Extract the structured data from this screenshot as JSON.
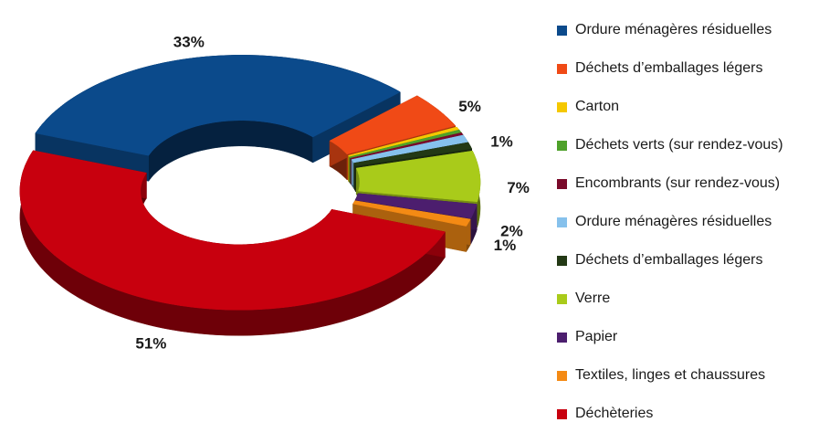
{
  "chart_data": {
    "type": "pie",
    "variant": "3d-exploded-donut",
    "legend_position": "right",
    "series": [
      {
        "name": "Ordure ménagères résiduelles",
        "value": 33,
        "label": "33%",
        "color": "#0b4a8b"
      },
      {
        "name": "Déchets d’emballages légers",
        "value": 5,
        "label": "5%",
        "color": "#f04a16"
      },
      {
        "name": "Carton",
        "value": 0.4,
        "label": "",
        "color": "#f5c800"
      },
      {
        "name": "Déchets verts (sur rendez-vous)",
        "value": 0.4,
        "label": "",
        "color": "#4ea12a"
      },
      {
        "name": "Encombrants (sur rendez-vous)",
        "value": 0.3,
        "label": "",
        "color": "#7a0a2a"
      },
      {
        "name": "Ordure ménagères résiduelles",
        "value": 1,
        "label": "1%",
        "color": "#86c1ec"
      },
      {
        "name": "Déchets d’emballages légers",
        "value": 0.9,
        "label": "",
        "color": "#233915"
      },
      {
        "name": "Verre",
        "value": 7,
        "label": "7%",
        "color": "#a9cb1a"
      },
      {
        "name": "Papier",
        "value": 2,
        "label": "2%",
        "color": "#4c1e6e"
      },
      {
        "name": "Textiles, linges et chaussures",
        "value": 1,
        "label": "1%",
        "color": "#f48a14"
      },
      {
        "name": "Déchèteries",
        "value": 51,
        "label": "51%",
        "color": "#c8000e"
      }
    ]
  }
}
